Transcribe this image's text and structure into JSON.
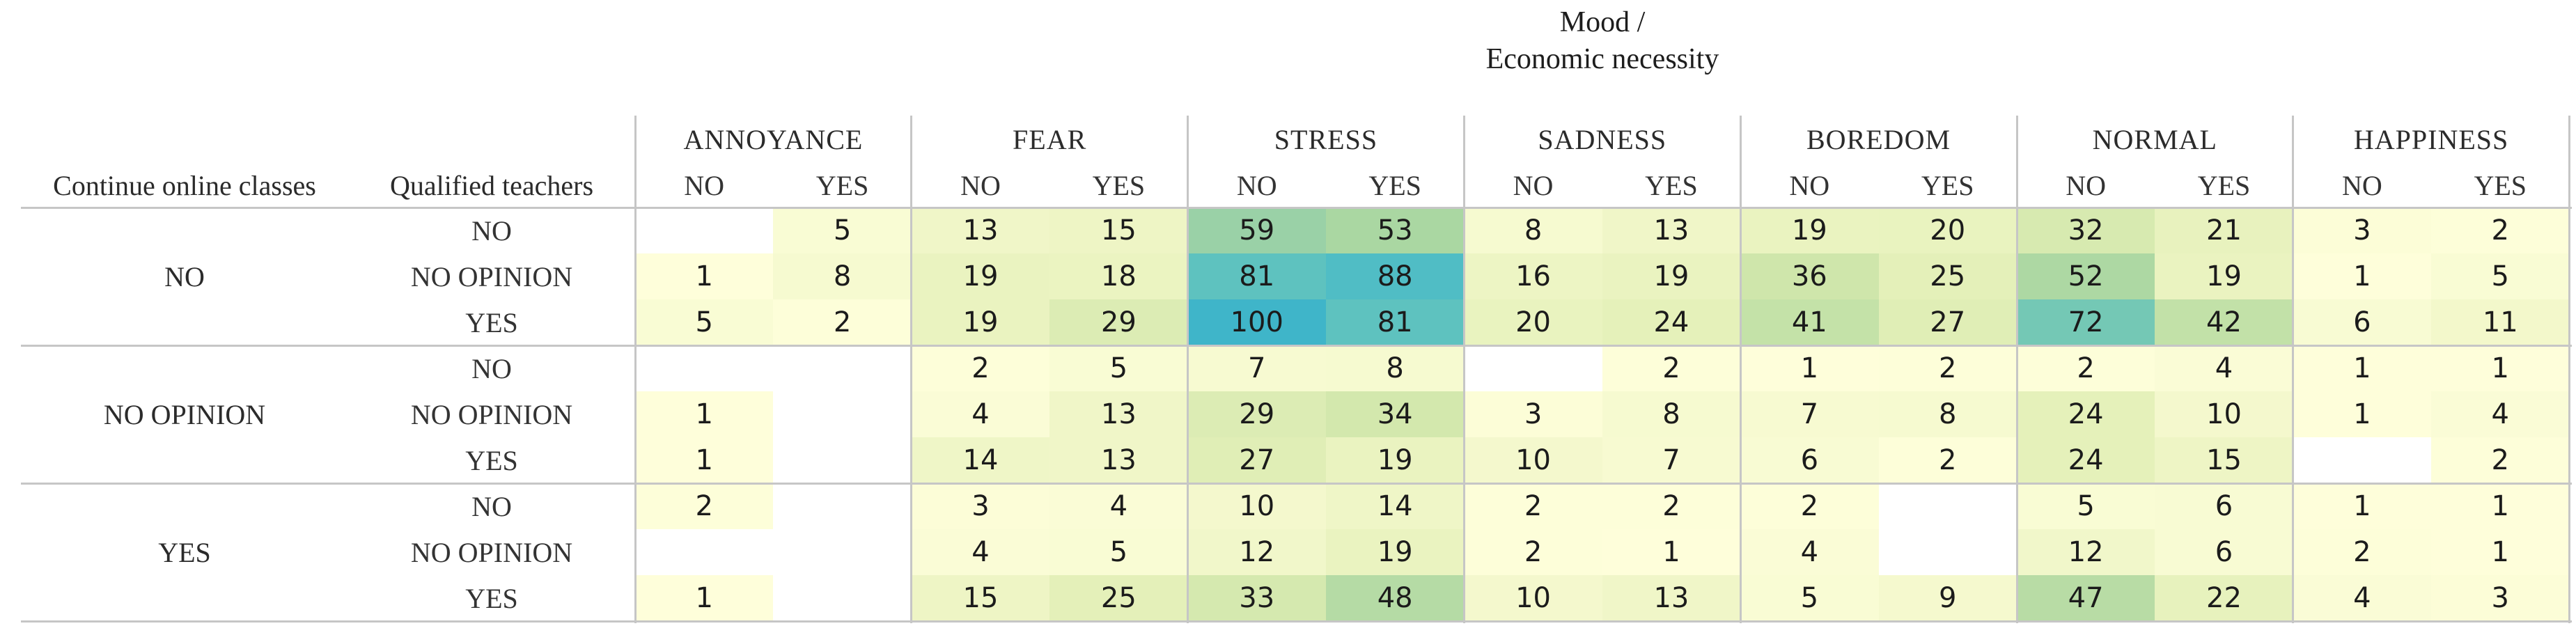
{
  "title": {
    "line1": "Mood /",
    "line2": "Economic necessity"
  },
  "chart_data": {
    "type": "heatmap",
    "title": "Mood / Economic necessity",
    "row_axis_labels": [
      "Continue online classes",
      "Qualified teachers"
    ],
    "col_groups": [
      "ANNOYANCE",
      "FEAR",
      "STRESS",
      "SADNESS",
      "BOREDOM",
      "NORMAL",
      "HAPPINESS"
    ],
    "sub_cols": [
      "NO",
      "YES"
    ],
    "row_blocks": [
      {
        "continue_online_classes": "NO",
        "rows": [
          {
            "qualified_teachers": "NO",
            "values": [
              null,
              5,
              13,
              15,
              59,
              53,
              8,
              13,
              19,
              20,
              32,
              21,
              3,
              2
            ]
          },
          {
            "qualified_teachers": "NO OPINION",
            "values": [
              1,
              8,
              19,
              18,
              81,
              88,
              16,
              19,
              36,
              25,
              52,
              19,
              1,
              5
            ]
          },
          {
            "qualified_teachers": "YES",
            "values": [
              5,
              2,
              19,
              29,
              100,
              81,
              20,
              24,
              41,
              27,
              72,
              42,
              6,
              11
            ]
          }
        ]
      },
      {
        "continue_online_classes": "NO OPINION",
        "rows": [
          {
            "qualified_teachers": "NO",
            "values": [
              null,
              null,
              2,
              5,
              7,
              8,
              null,
              2,
              1,
              2,
              2,
              4,
              1,
              1
            ]
          },
          {
            "qualified_teachers": "NO OPINION",
            "values": [
              1,
              null,
              4,
              13,
              29,
              34,
              3,
              8,
              7,
              8,
              24,
              10,
              1,
              4
            ]
          },
          {
            "qualified_teachers": "YES",
            "values": [
              1,
              null,
              14,
              13,
              27,
              19,
              10,
              7,
              6,
              2,
              24,
              15,
              null,
              2
            ]
          }
        ]
      },
      {
        "continue_online_classes": "YES",
        "rows": [
          {
            "qualified_teachers": "NO",
            "values": [
              2,
              null,
              3,
              4,
              10,
              14,
              2,
              2,
              2,
              null,
              5,
              6,
              1,
              1
            ]
          },
          {
            "qualified_teachers": "NO OPINION",
            "values": [
              null,
              null,
              4,
              5,
              12,
              19,
              2,
              1,
              4,
              null,
              12,
              6,
              2,
              1
            ]
          },
          {
            "qualified_teachers": "YES",
            "values": [
              1,
              null,
              15,
              25,
              33,
              48,
              10,
              13,
              5,
              9,
              47,
              22,
              4,
              3
            ]
          }
        ]
      }
    ],
    "value_range": [
      0,
      100
    ],
    "blank_color": "#ffffff",
    "grid_color": "#c6c6c6",
    "colormap": [
      [
        0,
        "#ffffdc"
      ],
      [
        15,
        "#eef5c5"
      ],
      [
        25,
        "#e4f0b9"
      ],
      [
        35,
        "#d1e7ac"
      ],
      [
        45,
        "#bcdea6"
      ],
      [
        55,
        "#a6d5a1"
      ],
      [
        65,
        "#88cbaf"
      ],
      [
        75,
        "#6cc7b8"
      ],
      [
        85,
        "#54bfc4"
      ],
      [
        100,
        "#3fb5c9"
      ]
    ],
    "legend": "none",
    "grid": "group-separators-only"
  }
}
